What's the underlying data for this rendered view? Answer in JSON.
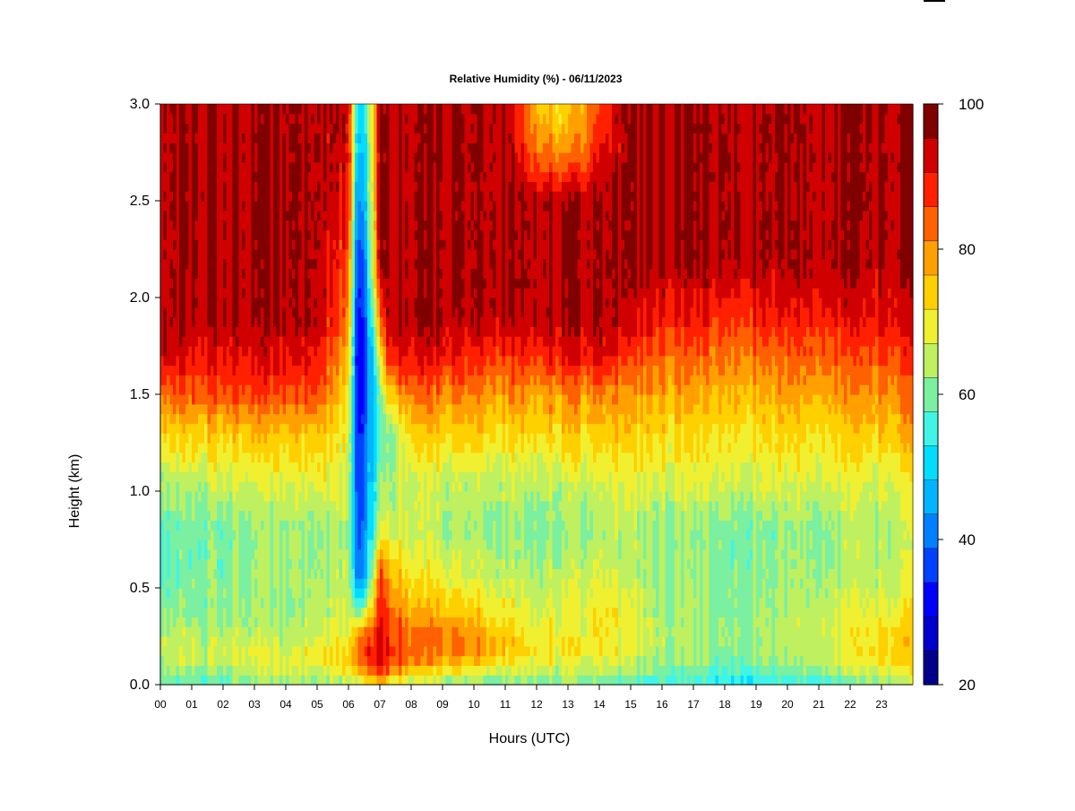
{
  "chart_data": {
    "type": "heatmap",
    "title": "Relative Humidity (%) - 06/11/2023",
    "xlabel": "Hours (UTC)",
    "ylabel": "Height (km)",
    "xlim": [
      0,
      24
    ],
    "ylim": [
      0,
      3
    ],
    "x_ticks": [
      "00",
      "01",
      "02",
      "03",
      "04",
      "05",
      "06",
      "07",
      "08",
      "09",
      "10",
      "11",
      "12",
      "13",
      "14",
      "15",
      "16",
      "17",
      "18",
      "19",
      "20",
      "21",
      "22",
      "23"
    ],
    "y_ticks": [
      "0.0",
      "0.5",
      "1.0",
      "1.5",
      "2.0",
      "2.5",
      "3.0"
    ],
    "colorbar": {
      "min": 20,
      "max": 100,
      "step": 5,
      "tick_labels": [
        "20",
        "40",
        "60",
        "80",
        "100"
      ],
      "colors": [
        "#00008b",
        "#0000cd",
        "#0000ff",
        "#0040ff",
        "#0080ff",
        "#00b4ff",
        "#00ddff",
        "#40f5e6",
        "#7af0a0",
        "#bff060",
        "#f0f030",
        "#ffd000",
        "#ffa000",
        "#ff6000",
        "#ff2000",
        "#d00000",
        "#800000"
      ]
    },
    "height_km": [
      0.0,
      0.05,
      0.15,
      0.25,
      0.4,
      0.55,
      0.8,
      1.05,
      1.3,
      1.5,
      1.7,
      1.9,
      2.2,
      2.5,
      2.8,
      3.0
    ],
    "hours_utc": [
      0,
      1,
      2,
      3,
      4,
      5,
      6,
      6.3,
      6.6,
      7,
      7.3,
      8,
      9,
      10,
      11,
      12,
      13,
      14,
      15,
      16,
      17,
      18,
      19,
      20,
      21,
      22,
      23,
      24
    ],
    "rh_percent": [
      [
        60,
        58,
        60,
        62,
        64,
        64,
        66,
        66,
        68,
        75,
        70,
        65,
        64,
        63,
        62,
        62,
        62,
        62,
        58,
        56,
        55,
        52,
        55,
        56,
        58,
        60,
        64,
        65
      ],
      [
        65,
        63,
        65,
        66,
        68,
        68,
        72,
        80,
        85,
        90,
        85,
        75,
        72,
        70,
        68,
        67,
        66,
        66,
        63,
        61,
        60,
        58,
        60,
        61,
        63,
        66,
        68,
        70
      ],
      [
        70,
        68,
        70,
        72,
        70,
        75,
        78,
        90,
        92,
        98,
        95,
        88,
        85,
        83,
        78,
        75,
        73,
        74,
        70,
        66,
        65,
        63,
        65,
        66,
        68,
        72,
        78,
        78
      ],
      [
        69,
        67,
        68,
        68,
        67,
        70,
        72,
        88,
        90,
        95,
        92,
        87,
        87,
        84,
        78,
        74,
        72,
        75,
        71,
        67,
        66,
        64,
        66,
        67,
        69,
        72,
        76,
        77
      ],
      [
        65,
        63,
        65,
        65,
        64,
        67,
        70,
        60,
        70,
        92,
        88,
        80,
        78,
        76,
        72,
        70,
        70,
        75,
        70,
        66,
        65,
        63,
        65,
        66,
        68,
        70,
        72,
        73
      ],
      [
        62,
        62,
        64,
        65,
        65,
        66,
        68,
        42,
        52,
        90,
        82,
        75,
        72,
        70,
        68,
        67,
        68,
        70,
        68,
        65,
        64,
        63,
        64,
        65,
        66,
        67,
        68,
        70
      ],
      [
        62,
        61,
        63,
        64,
        64,
        65,
        67,
        38,
        48,
        68,
        72,
        68,
        66,
        65,
        64,
        63,
        64,
        66,
        66,
        64,
        63,
        62,
        63,
        64,
        64,
        66,
        66,
        67
      ],
      [
        68,
        67,
        70,
        70,
        70,
        72,
        70,
        36,
        46,
        62,
        66,
        70,
        68,
        68,
        68,
        68,
        69,
        70,
        70,
        70,
        70,
        70,
        70,
        70,
        70,
        70,
        70,
        72
      ],
      [
        78,
        77,
        78,
        79,
        78,
        80,
        72,
        34,
        44,
        58,
        62,
        78,
        77,
        77,
        76,
        76,
        77,
        78,
        77,
        76,
        75,
        74,
        75,
        76,
        76,
        77,
        78,
        80
      ],
      [
        88,
        88,
        90,
        90,
        89,
        90,
        75,
        32,
        42,
        60,
        80,
        87,
        85,
        85,
        84,
        83,
        84,
        85,
        83,
        82,
        81,
        80,
        81,
        82,
        82,
        83,
        84,
        85
      ],
      [
        100,
        94,
        96,
        96,
        95,
        96,
        80,
        30,
        40,
        70,
        96,
        97,
        95,
        93,
        91,
        93,
        95,
        97,
        90,
        88,
        87,
        86,
        87,
        88,
        88,
        89,
        90,
        91
      ],
      [
        100,
        100,
        100,
        100,
        100,
        100,
        85,
        32,
        44,
        85,
        100,
        100,
        100,
        100,
        100,
        100,
        100,
        100,
        97,
        94,
        93,
        92,
        93,
        94,
        94,
        95,
        96,
        96
      ],
      [
        100,
        100,
        100,
        100,
        100,
        100,
        90,
        36,
        50,
        100,
        100,
        100,
        100,
        100,
        100,
        100,
        100,
        100,
        100,
        100,
        100,
        100,
        100,
        100,
        100,
        100,
        100,
        100
      ],
      [
        100,
        100,
        100,
        100,
        100,
        100,
        95,
        42,
        55,
        100,
        100,
        100,
        100,
        100,
        100,
        100,
        100,
        100,
        100,
        100,
        100,
        100,
        100,
        100,
        100,
        100,
        100,
        100
      ],
      [
        100,
        100,
        100,
        100,
        100,
        100,
        98,
        50,
        58,
        100,
        100,
        100,
        100,
        100,
        100,
        86,
        80,
        94,
        100,
        100,
        100,
        100,
        100,
        100,
        100,
        100,
        100,
        100
      ],
      [
        100,
        100,
        100,
        100,
        100,
        100,
        98,
        52,
        60,
        100,
        100,
        100,
        100,
        100,
        100,
        80,
        75,
        90,
        100,
        100,
        100,
        100,
        100,
        100,
        100,
        100,
        100,
        100
      ]
    ]
  }
}
